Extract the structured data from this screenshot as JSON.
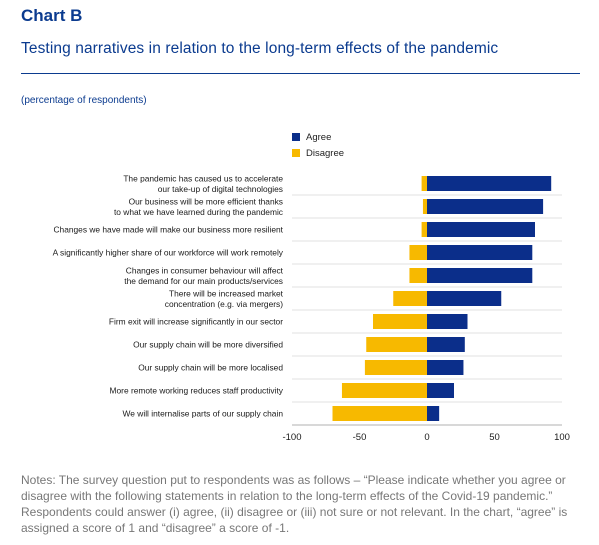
{
  "header": {
    "chart_label": "Chart B",
    "subtitle": "Testing narratives in relation to the long-term effects of the pandemic",
    "units_note": "(percentage of respondents)"
  },
  "colors": {
    "agree": "#0b2e8a",
    "disagree": "#f7b900"
  },
  "chart_data": {
    "type": "bar",
    "orientation": "horizontal",
    "stacked": "diverging",
    "categories": [
      "The pandemic has caused us to accelerate\nour take-up of digital technologies",
      "Our business will be more efficient thanks\nto what we have learned during the pandemic",
      "Changes we have made will make our business more resilient",
      "A significantly higher share of our workforce will work remotely",
      "Changes in consumer behaviour will affect\nthe demand for our main products/services",
      "There will be increased market\nconcentration (e.g. via mergers)",
      "Firm exit will increase significantly in our sector",
      "Our supply chain will be more diversified",
      "Our supply chain will be more localised",
      "More remote working reduces staff productivity",
      "We will internalise parts of our supply chain"
    ],
    "series": [
      {
        "name": "Agree",
        "values": [
          92,
          86,
          80,
          78,
          78,
          55,
          30,
          28,
          27,
          20,
          9
        ]
      },
      {
        "name": "Disagree",
        "values": [
          -4,
          -3,
          -4,
          -13,
          -13,
          -25,
          -40,
          -45,
          -46,
          -63,
          -70
        ]
      }
    ],
    "xlim": [
      -100,
      100
    ],
    "xticks": [
      -100,
      -50,
      0,
      50,
      100
    ],
    "xlabel": "",
    "ylabel": "",
    "legend_position": "top-center",
    "grid": true
  },
  "notes": "Notes: The survey question put to respondents was as follows – “Please indicate whether you agree or disagree with the following statements in relation to the long-term effects of the Covid-19 pandemic.” Respondents could answer (i) agree, (ii) disagree or (iii) not sure or not relevant. In the chart, “agree” is assigned a score of 1 and “disagree” a score of -1."
}
